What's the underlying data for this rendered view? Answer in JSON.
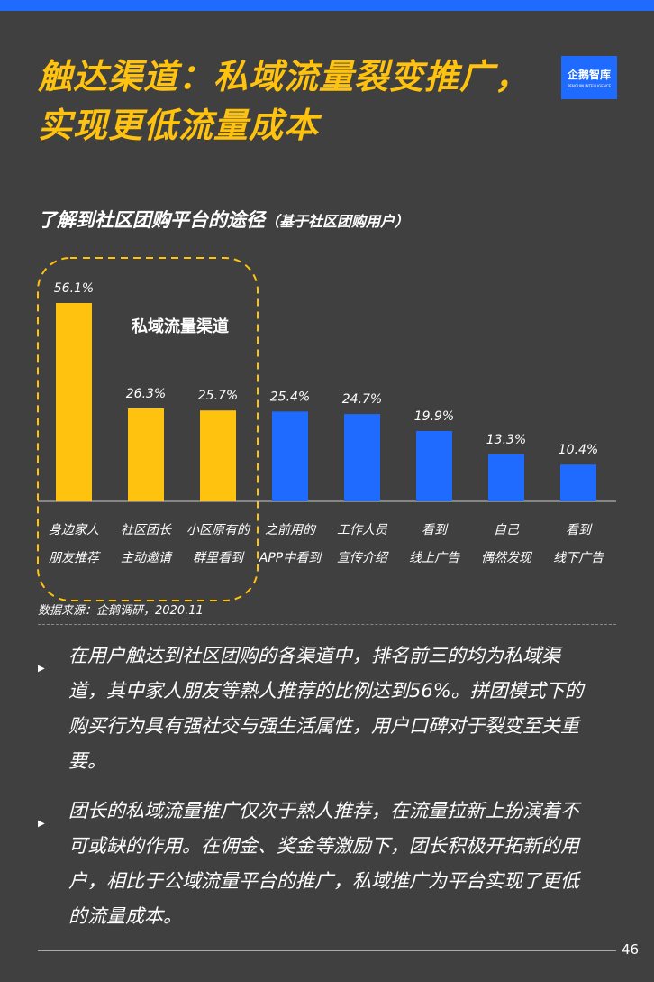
{
  "header": {
    "title_line1": "触达渠道：私域流量裂变推广，",
    "title_line2": "实现更低流量成本",
    "logo_text": "企鹅智库",
    "logo_sub": "PENGUIN INTELLIGENCE"
  },
  "chart_data": {
    "type": "bar",
    "title": "了解到社区团购平台的途径",
    "subtitle": "（基于社区团购用户）",
    "annotation": "私域流量渠道",
    "categories": [
      [
        "身边家人",
        "朋友推荐"
      ],
      [
        "社区团长",
        "主动邀请"
      ],
      [
        "小区原有的",
        "群里看到"
      ],
      [
        "之前用的",
        "APP中看到"
      ],
      [
        "工作人员",
        "宣传介绍"
      ],
      [
        "看到",
        "线上广告"
      ],
      [
        "自己",
        "偶然发现"
      ],
      [
        "看到",
        "线下广告"
      ]
    ],
    "values": [
      56.1,
      26.3,
      25.7,
      25.4,
      24.7,
      19.9,
      13.3,
      10.4
    ],
    "labels": [
      "56.1%",
      "26.3%",
      "25.7%",
      "25.4%",
      "24.7%",
      "19.9%",
      "13.3%",
      "10.4%"
    ],
    "highlight_count": 3,
    "colors": {
      "private": "#ffc20e",
      "other": "#1f6bff"
    },
    "ylim": [
      0,
      60
    ]
  },
  "source": "数据来源：企鹅调研，2020.11",
  "bullets": [
    "在用户触达到社区团购的各渠道中，排名前三的均为私域渠道，其中家人朋友等熟人推荐的比例达到56%。拼团模式下的购买行为具有强社交与强生活属性，用户口碑对于裂变至关重要。",
    "团长的私域流量推广仅次于熟人推荐，在流量拉新上扮演着不可或缺的作用。在佣金、奖金等激励下，团长积极开拓新的用户，相比于公域流量平台的推广，私域推广为平台实现了更低的流量成本。"
  ],
  "page": "46"
}
